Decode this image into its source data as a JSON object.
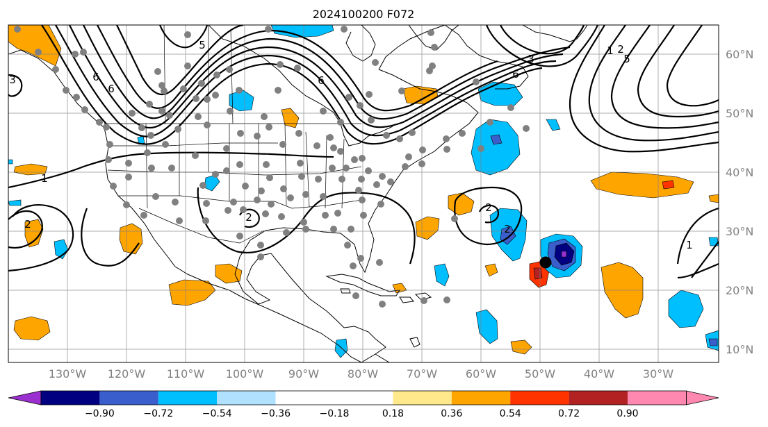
{
  "title": "2024100200 F072",
  "lon_labels": [
    "130°W",
    "120°W",
    "110°W",
    "100°W",
    "90°W",
    "80°W",
    "70°W",
    "60°W",
    "50°W",
    "40°W",
    "30°W"
  ],
  "lat_labels": [
    "60°N",
    "50°N",
    "40°N",
    "30°N",
    "20°N",
    "10°N"
  ],
  "colorbar": {
    "tick_labels": [
      "−0.90",
      "−0.72",
      "−0.54",
      "−0.36",
      "−0.18",
      "0.18",
      "0.36",
      "0.54",
      "0.72",
      "0.90"
    ],
    "colors": [
      "#9b30d0",
      "#000080",
      "#3a5fcd",
      "#00bfff",
      "#b0e2ff",
      "#ffffff",
      "#ffe98a",
      "#ffa500",
      "#ff3300",
      "#b22222",
      "#ff88b0"
    ]
  },
  "contour_labels": [
    "5",
    "6",
    "6",
    "6",
    "3",
    "2",
    "1",
    "2",
    "5",
    "6",
    "3",
    "1",
    "2",
    "2",
    "2",
    "1"
  ],
  "colors": {
    "obs_dot": "#808080",
    "grid": "#808080",
    "contour": "#000000"
  }
}
